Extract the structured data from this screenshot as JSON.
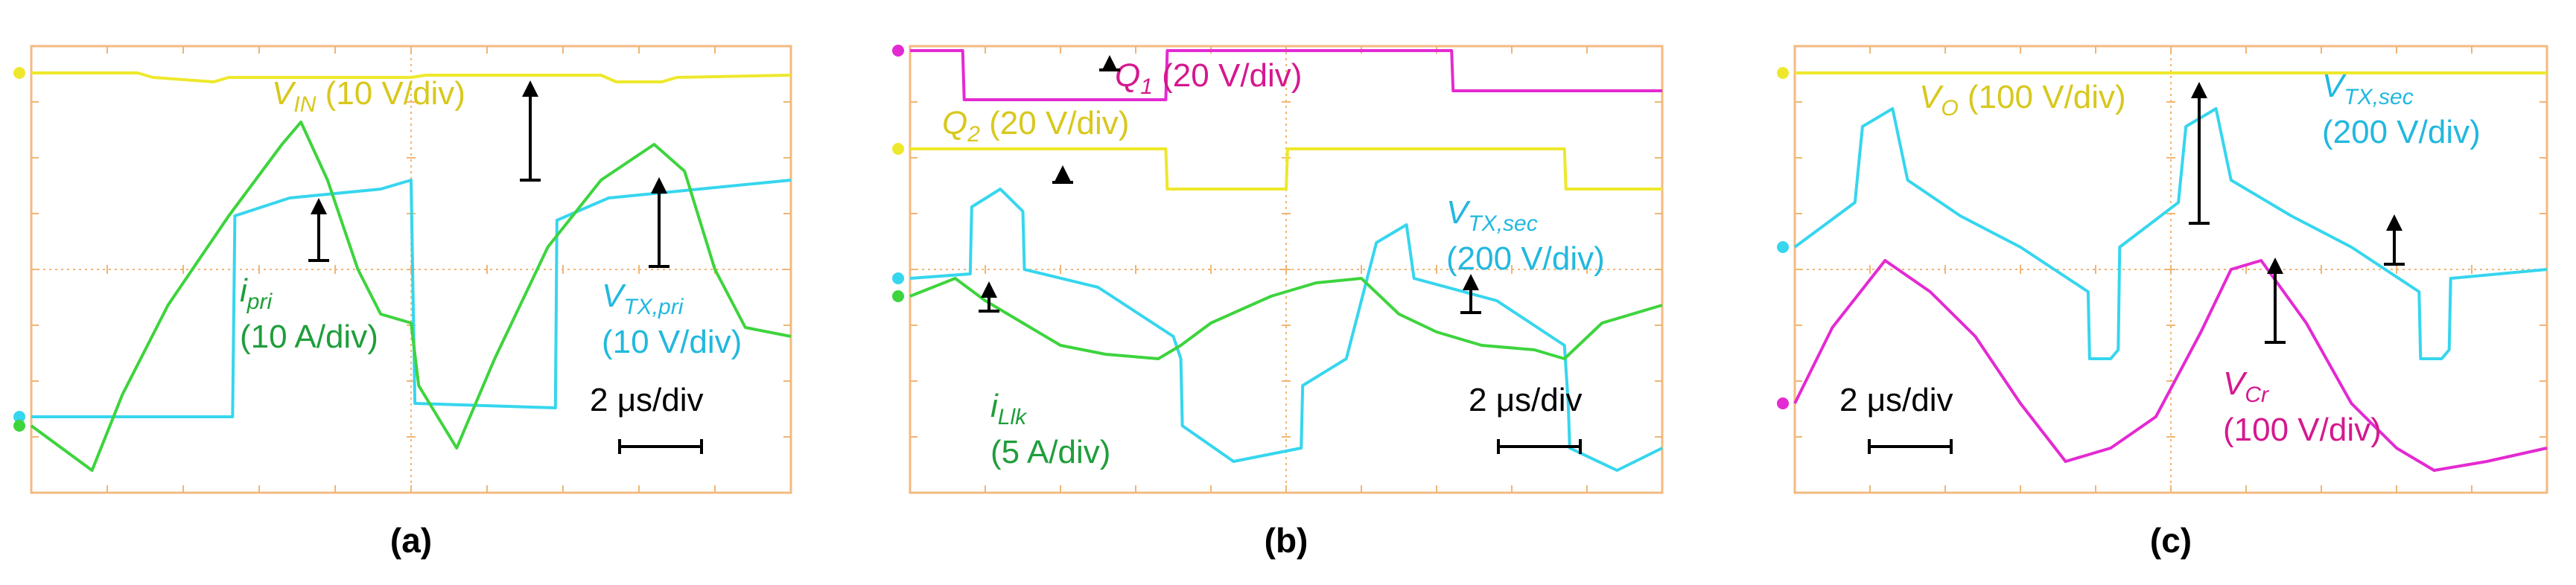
{
  "colors": {
    "yellow": "#eee82c",
    "cyan": "#36d6ee",
    "green": "#3dd43d",
    "magenta": "#e42ad2",
    "grid": "#f0b674",
    "frame": "#f3ba80",
    "arrow": "#000000",
    "green_text": "#1f9e3b",
    "cyan_text": "#22b8de",
    "yellow_text": "#d8c81c",
    "magenta_text": "#d5188f"
  },
  "chart_data": [
    {
      "type": "line",
      "caption": "(a)",
      "scale_label": "2 μs/div",
      "grid": true,
      "series": [
        {
          "name": "V_IN",
          "sub": "IN",
          "label": "V",
          "unit": "(10 V/div)",
          "color": "yellow"
        },
        {
          "name": "i_pri",
          "sub": "pri",
          "label": "i",
          "unit": "(10 A/div)",
          "color": "green"
        },
        {
          "name": "V_TX,pri",
          "sub": "TX,pri",
          "label": "V",
          "unit": "(10 V/div)",
          "color": "cyan"
        }
      ],
      "traces": {
        "yellow": [
          [
            0,
            0.94
          ],
          [
            1.4,
            0.94
          ],
          [
            1.6,
            0.93
          ],
          [
            2.4,
            0.92
          ],
          [
            2.6,
            0.93
          ],
          [
            5,
            0.93
          ],
          [
            5.2,
            0.935
          ],
          [
            7.5,
            0.935
          ],
          [
            7.7,
            0.92
          ],
          [
            8.3,
            0.92
          ],
          [
            8.5,
            0.93
          ],
          [
            10,
            0.935
          ]
        ],
        "cyan": [
          [
            0,
            0.17
          ],
          [
            2.65,
            0.17
          ],
          [
            2.68,
            0.62
          ],
          [
            3.4,
            0.66
          ],
          [
            4.6,
            0.68
          ],
          [
            5.0,
            0.7
          ],
          [
            5.05,
            0.2
          ],
          [
            6.9,
            0.19
          ],
          [
            6.92,
            0.61
          ],
          [
            7.6,
            0.66
          ],
          [
            8.8,
            0.68
          ],
          [
            10,
            0.7
          ]
        ],
        "green": [
          [
            0,
            0.15
          ],
          [
            0.8,
            0.05
          ],
          [
            1.2,
            0.22
          ],
          [
            1.8,
            0.42
          ],
          [
            2.6,
            0.62
          ],
          [
            3.3,
            0.78
          ],
          [
            3.55,
            0.83
          ],
          [
            3.9,
            0.7
          ],
          [
            4.3,
            0.5
          ],
          [
            4.6,
            0.4
          ],
          [
            5.0,
            0.38
          ],
          [
            5.1,
            0.24
          ],
          [
            5.6,
            0.1
          ],
          [
            6.1,
            0.3
          ],
          [
            6.8,
            0.55
          ],
          [
            7.5,
            0.7
          ],
          [
            8.2,
            0.78
          ],
          [
            8.6,
            0.72
          ],
          [
            9.0,
            0.5
          ],
          [
            9.4,
            0.37
          ],
          [
            10,
            0.35
          ]
        ]
      }
    },
    {
      "type": "line",
      "caption": "(b)",
      "scale_label": "2 μs/div",
      "grid": true,
      "series": [
        {
          "name": "Q_1",
          "sub": "1",
          "label": "Q",
          "unit": "(20 V/div)",
          "color": "magenta"
        },
        {
          "name": "Q_2",
          "sub": "2",
          "label": "Q",
          "unit": "(20 V/div)",
          "color": "yellow"
        },
        {
          "name": "V_TX,sec",
          "sub": "TX,sec",
          "label": "V",
          "unit": "(200 V/div)",
          "color": "cyan"
        },
        {
          "name": "i_Llk",
          "sub": "Llk",
          "label": "i",
          "unit": "(5 A/div)",
          "color": "green"
        }
      ],
      "traces": {
        "magenta": [
          [
            0,
            0.99
          ],
          [
            0.7,
            0.99
          ],
          [
            0.72,
            0.88
          ],
          [
            3.4,
            0.88
          ],
          [
            3.42,
            0.99
          ],
          [
            7.2,
            0.99
          ],
          [
            7.22,
            0.9
          ],
          [
            10,
            0.9
          ]
        ],
        "yellow": [
          [
            0,
            0.77
          ],
          [
            3.4,
            0.77
          ],
          [
            3.42,
            0.68
          ],
          [
            5.0,
            0.68
          ],
          [
            5.02,
            0.77
          ],
          [
            8.7,
            0.77
          ],
          [
            8.72,
            0.68
          ],
          [
            10,
            0.68
          ]
        ],
        "cyan": [
          [
            0,
            0.48
          ],
          [
            0.8,
            0.49
          ],
          [
            0.82,
            0.64
          ],
          [
            1.2,
            0.68
          ],
          [
            1.5,
            0.63
          ],
          [
            1.52,
            0.5
          ],
          [
            2.5,
            0.46
          ],
          [
            3.5,
            0.35
          ],
          [
            3.6,
            0.3
          ],
          [
            3.62,
            0.15
          ],
          [
            4.3,
            0.07
          ],
          [
            5.2,
            0.1
          ],
          [
            5.22,
            0.24
          ],
          [
            5.8,
            0.3
          ],
          [
            6.2,
            0.56
          ],
          [
            6.6,
            0.6
          ],
          [
            6.7,
            0.48
          ],
          [
            7.8,
            0.43
          ],
          [
            8.7,
            0.33
          ],
          [
            8.75,
            0.2
          ],
          [
            8.77,
            0.1
          ],
          [
            9.4,
            0.05
          ],
          [
            10,
            0.1
          ]
        ],
        "green": [
          [
            0,
            0.44
          ],
          [
            0.6,
            0.48
          ],
          [
            1.0,
            0.43
          ],
          [
            1.5,
            0.38
          ],
          [
            2.0,
            0.33
          ],
          [
            2.6,
            0.31
          ],
          [
            3.3,
            0.3
          ],
          [
            3.6,
            0.33
          ],
          [
            4.0,
            0.38
          ],
          [
            4.8,
            0.44
          ],
          [
            5.4,
            0.47
          ],
          [
            6.0,
            0.48
          ],
          [
            6.5,
            0.4
          ],
          [
            7.0,
            0.36
          ],
          [
            7.6,
            0.33
          ],
          [
            8.3,
            0.32
          ],
          [
            8.7,
            0.3
          ],
          [
            9.2,
            0.38
          ],
          [
            10,
            0.42
          ]
        ]
      }
    },
    {
      "type": "line",
      "caption": "(c)",
      "scale_label": "2 μs/div",
      "grid": true,
      "series": [
        {
          "name": "V_O",
          "sub": "O",
          "label": "V",
          "unit": "(100 V/div)",
          "color": "yellow"
        },
        {
          "name": "V_TX,sec",
          "sub": "TX,sec",
          "label": "V",
          "unit": "(200 V/div)",
          "color": "cyan"
        },
        {
          "name": "V_Cr",
          "sub": "Cr",
          "label": "V",
          "unit": "(100 V/div)",
          "color": "magenta"
        }
      ],
      "traces": {
        "yellow": [
          [
            0,
            0.94
          ],
          [
            10,
            0.94
          ]
        ],
        "cyan": [
          [
            0,
            0.55
          ],
          [
            0.8,
            0.65
          ],
          [
            0.9,
            0.82
          ],
          [
            1.3,
            0.86
          ],
          [
            1.5,
            0.7
          ],
          [
            2.2,
            0.62
          ],
          [
            3.0,
            0.55
          ],
          [
            3.9,
            0.45
          ],
          [
            3.92,
            0.3
          ],
          [
            4.2,
            0.3
          ],
          [
            4.3,
            0.32
          ],
          [
            4.32,
            0.55
          ],
          [
            5.1,
            0.65
          ],
          [
            5.2,
            0.82
          ],
          [
            5.6,
            0.86
          ],
          [
            5.8,
            0.7
          ],
          [
            6.6,
            0.62
          ],
          [
            7.4,
            0.55
          ],
          [
            8.3,
            0.45
          ],
          [
            8.32,
            0.3
          ],
          [
            8.6,
            0.3
          ],
          [
            8.7,
            0.32
          ],
          [
            8.72,
            0.48
          ],
          [
            10,
            0.5
          ]
        ],
        "magenta": [
          [
            0,
            0.2
          ],
          [
            0.5,
            0.37
          ],
          [
            1.2,
            0.52
          ],
          [
            1.8,
            0.45
          ],
          [
            2.4,
            0.35
          ],
          [
            3.0,
            0.2
          ],
          [
            3.6,
            0.07
          ],
          [
            4.2,
            0.1
          ],
          [
            4.8,
            0.17
          ],
          [
            5.4,
            0.36
          ],
          [
            5.8,
            0.5
          ],
          [
            6.2,
            0.52
          ],
          [
            6.8,
            0.38
          ],
          [
            7.4,
            0.2
          ],
          [
            8.0,
            0.1
          ],
          [
            8.5,
            0.05
          ],
          [
            9.2,
            0.07
          ],
          [
            10,
            0.1
          ]
        ]
      }
    }
  ]
}
